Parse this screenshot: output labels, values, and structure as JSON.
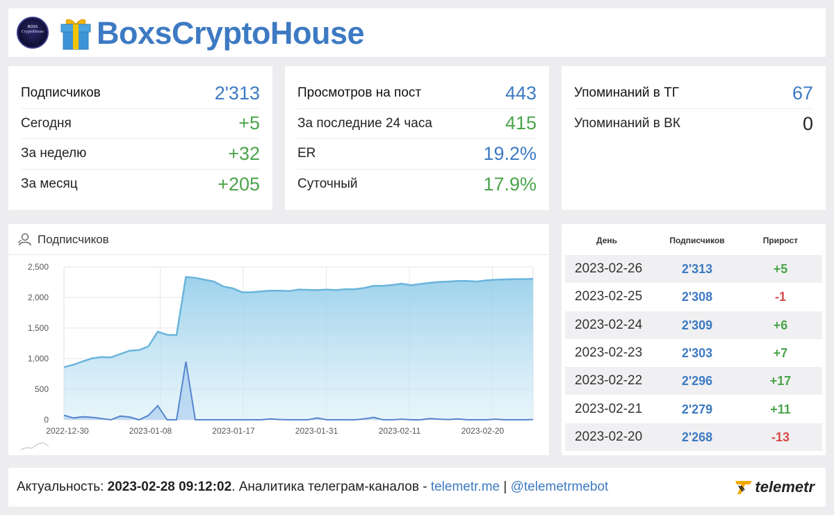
{
  "header": {
    "channel_name": "BoxsCryptoHouse",
    "avatar_text_top": "BOXS",
    "avatar_text": "CryptoHouse"
  },
  "subscribers_card": {
    "rows": [
      {
        "label": "Подписчиков",
        "value": "2'313",
        "color": "blue"
      },
      {
        "label": "Сегодня",
        "value": "+5",
        "color": "green"
      },
      {
        "label": "За неделю",
        "value": "+32",
        "color": "green"
      },
      {
        "label": "За месяц",
        "value": "+205",
        "color": "green"
      }
    ]
  },
  "views_card": {
    "rows": [
      {
        "label": "Просмотров на пост",
        "value": "443",
        "color": "blue"
      },
      {
        "label": "За последние 24 часа",
        "value": "415",
        "color": "green"
      },
      {
        "label": "ER",
        "value": "19.2%",
        "color": "blue"
      },
      {
        "label": "Суточный",
        "value": "17.9%",
        "color": "green"
      }
    ]
  },
  "mentions_card": {
    "rows": [
      {
        "label": "Упоминаний в ТГ",
        "value": "67",
        "color": "blue"
      },
      {
        "label": "Упоминаний в ВК",
        "value": "0",
        "color": "dark"
      }
    ]
  },
  "chart": {
    "title": "Подписчиков",
    "icon": "user-icon"
  },
  "chart_data": {
    "type": "area",
    "title": "",
    "xlabel": "",
    "ylabel": "",
    "ylim": [
      0,
      2500
    ],
    "yticks": [
      "0",
      "500",
      "1,000",
      "1,500",
      "2,000",
      "2,500"
    ],
    "xtick_labels": [
      "2022-12-30",
      "2023-01-08",
      "2023-01-17",
      "2023-01-31",
      "2023-02-11",
      "2023-02-20"
    ],
    "grid": true,
    "series": [
      {
        "values": [
          860,
          900,
          955,
          1005,
          1025,
          1020,
          1075,
          1130,
          1140,
          1200,
          1440,
          1390,
          1385,
          2335,
          2320,
          2290,
          2260,
          2180,
          2150,
          2085,
          2085,
          2100,
          2110,
          2110,
          2105,
          2130,
          2125,
          2120,
          2130,
          2120,
          2135,
          2135,
          2155,
          2190,
          2190,
          2205,
          2225,
          2200,
          2220,
          2240,
          2255,
          2260,
          2270,
          2270,
          2260,
          2280,
          2290,
          2295,
          2300,
          2300,
          2305
        ]
      },
      {
        "values": [
          75,
          30,
          50,
          40,
          20,
          0,
          60,
          45,
          0,
          70,
          230,
          0,
          0,
          950,
          0,
          0,
          0,
          0,
          0,
          0,
          0,
          0,
          15,
          5,
          0,
          0,
          0,
          30,
          0,
          0,
          0,
          0,
          15,
          40,
          0,
          0,
          10,
          0,
          0,
          20,
          10,
          5,
          15,
          0,
          0,
          0,
          10,
          0,
          0,
          0,
          5
        ]
      }
    ]
  },
  "table": {
    "headers": [
      "День",
      "Подписчиков",
      "Прирост"
    ],
    "rows": [
      {
        "date": "2023-02-26",
        "subs": "2'313",
        "gain": "+5",
        "color": "green"
      },
      {
        "date": "2023-02-25",
        "subs": "2'308",
        "gain": "-1",
        "color": "red"
      },
      {
        "date": "2023-02-24",
        "subs": "2'309",
        "gain": "+6",
        "color": "green"
      },
      {
        "date": "2023-02-23",
        "subs": "2'303",
        "gain": "+7",
        "color": "green"
      },
      {
        "date": "2023-02-22",
        "subs": "2'296",
        "gain": "+17",
        "color": "green"
      },
      {
        "date": "2023-02-21",
        "subs": "2'279",
        "gain": "+11",
        "color": "green"
      },
      {
        "date": "2023-02-20",
        "subs": "2'268",
        "gain": "-13",
        "color": "red"
      }
    ]
  },
  "footer": {
    "prefix": "Актуальность: ",
    "timestamp": "2023-02-28 09:12:02",
    "middle": ". Аналитика телеграм-каналов - ",
    "link1": "telemetr.me",
    "separator": " | ",
    "link2": "@telemetrmebot",
    "logo_text": "telemetr"
  },
  "colors": {
    "accent_blue": "#3d7ac3",
    "green": "#4aa44a",
    "red": "#d94848",
    "area_line": "#6ab4dc",
    "spike_line": "#5585cc"
  }
}
